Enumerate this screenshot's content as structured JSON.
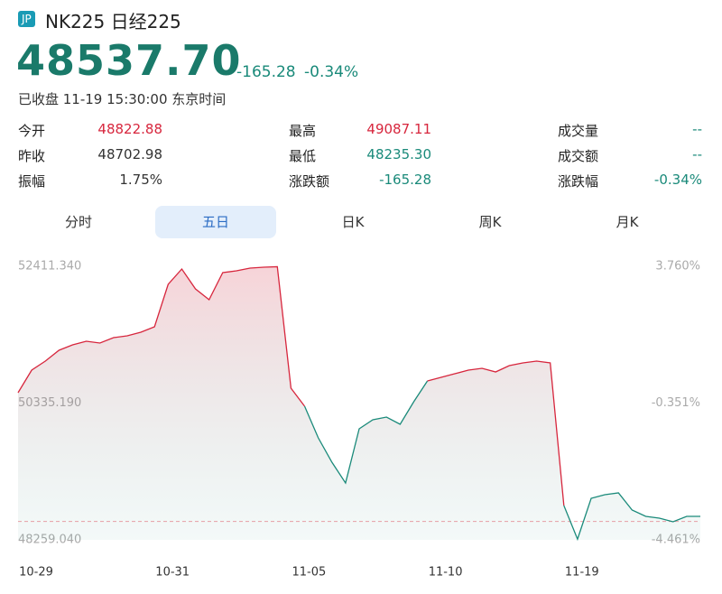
{
  "header": {
    "badge": "JP",
    "name": "NK225 日经225",
    "price": "48537.70",
    "change": "-165.28",
    "change_pct": "-0.34%",
    "status": "已收盘 11-19 15:30:00 东京时间"
  },
  "stats": [
    [
      {
        "label": "今开",
        "value": "48822.88"
      },
      {
        "label": "最高",
        "value": "49087.11"
      },
      {
        "label": "成交量",
        "value": "--"
      }
    ],
    [
      {
        "label": "昨收",
        "value": "48702.98"
      },
      {
        "label": "最低",
        "value": "48235.30"
      },
      {
        "label": "成交额",
        "value": "--"
      }
    ],
    [
      {
        "label": "振幅",
        "value": "1.75%"
      },
      {
        "label": "涨跌额",
        "value": "-165.28"
      },
      {
        "label": "涨跌幅",
        "value": "-0.34%"
      }
    ]
  ],
  "tabs": [
    "分时",
    "五日",
    "日K",
    "周K",
    "月K"
  ],
  "chart_data": {
    "type": "line",
    "categories": [
      "10-29",
      null,
      null,
      null,
      null,
      null,
      null,
      null,
      null,
      null,
      "10-31",
      null,
      null,
      null,
      null,
      null,
      null,
      null,
      null,
      null,
      "11-05",
      null,
      null,
      null,
      null,
      null,
      null,
      null,
      null,
      null,
      "11-10",
      null,
      null,
      null,
      null,
      null,
      null,
      null,
      null,
      null,
      "11-19",
      null,
      null,
      null,
      null,
      null,
      null,
      null,
      null,
      null,
      null
    ],
    "series": [
      {
        "name": "NK225",
        "values": [
          50492.8,
          50835.3,
          50972.4,
          51136.8,
          51219.1,
          51273.9,
          51246.5,
          51328.7,
          51356.1,
          51410.9,
          51493.1,
          52137.2,
          52370.2,
          52068.7,
          51904.3,
          52315.4,
          52342.8,
          52383.9,
          52397.6,
          52405,
          50561.3,
          50287.2,
          49807.5,
          49437.5,
          49122.3,
          49944.6,
          50081.6,
          50122.7,
          50013.1,
          50355.7,
          50670.9,
          50725.7,
          50780.5,
          50835.3,
          50862.7,
          50807.9,
          50903.9,
          50945.0,
          50972.4,
          50945.0,
          48779.7,
          48270,
          48889.4,
          48944.2,
          48971.6,
          48711.2,
          48615.3,
          48587.9,
          48533.1,
          48615.3,
          48615.3
        ]
      }
    ],
    "up_color": "#d7263d",
    "down_color": "#1a8a7a",
    "ylim": [
      48259.04,
      52411.34
    ],
    "yticks": [
      {
        "value": 48259.04,
        "label": "48259.040"
      },
      {
        "value": 50335.19,
        "label": "50335.190"
      },
      {
        "value": 52411.34,
        "label": "52411.340"
      }
    ],
    "y2lim": [
      -4.461,
      3.76
    ],
    "y2ticks": [
      {
        "value": -4.461,
        "label": "-4.461%"
      },
      {
        "value": -0.351,
        "label": "-0.351%"
      },
      {
        "value": 3.76,
        "label": "3.760%"
      }
    ],
    "reference_line": 48537.7,
    "grid": false
  }
}
